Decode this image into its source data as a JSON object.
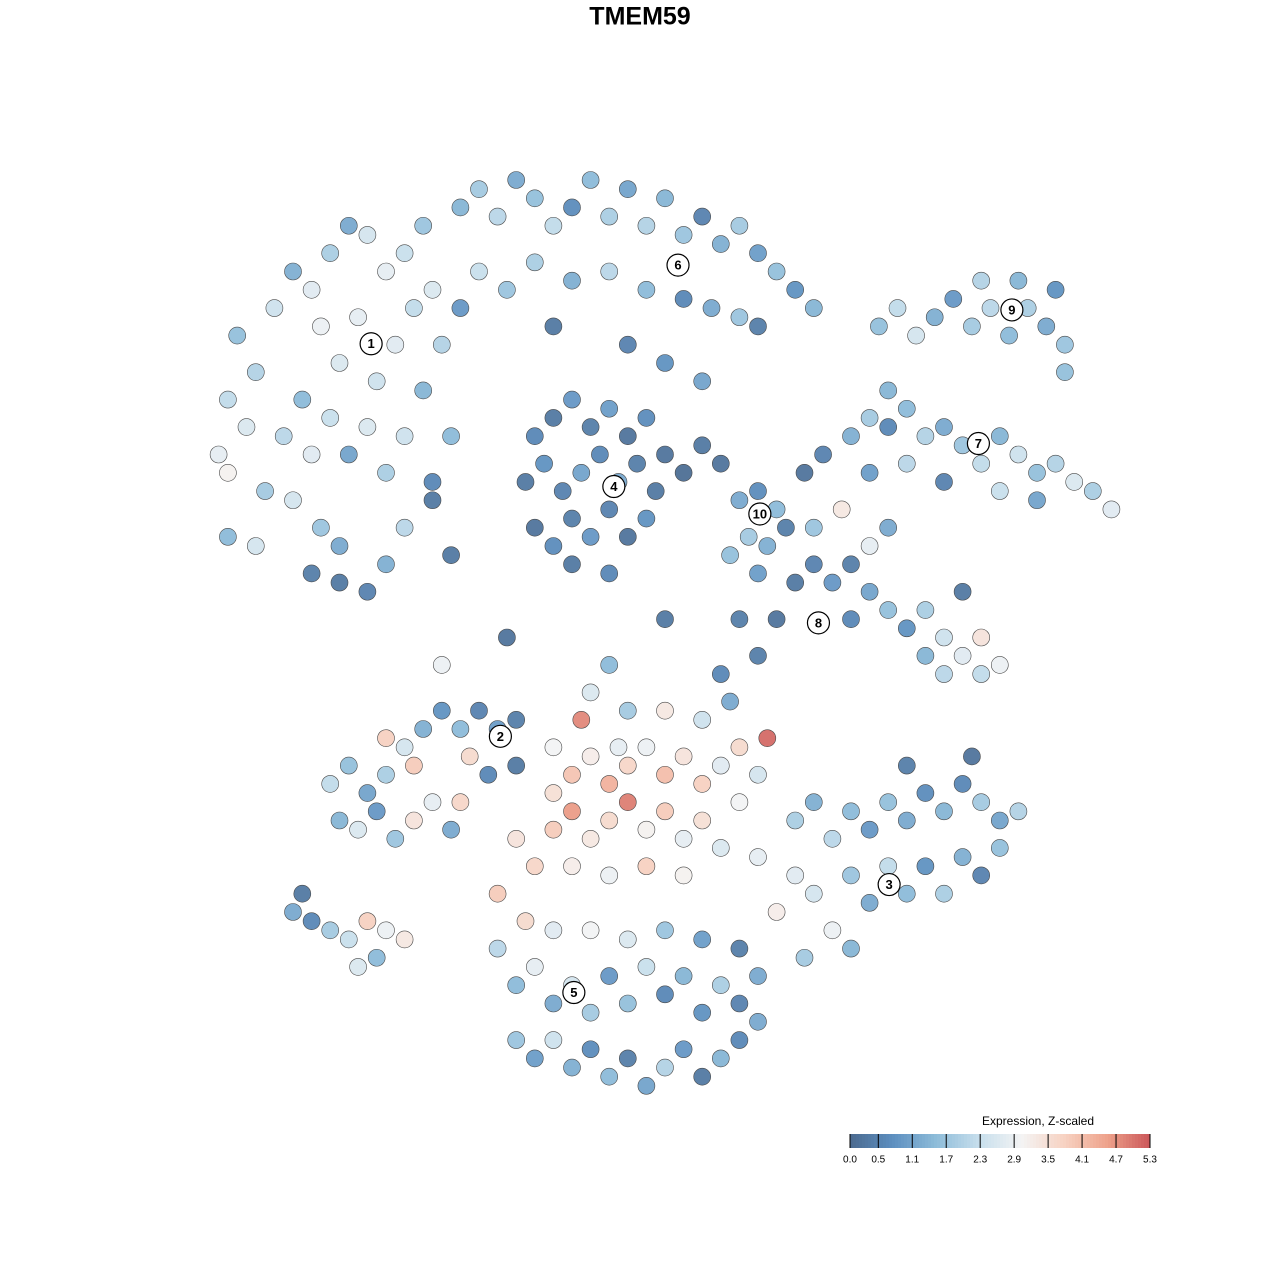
{
  "chart_data": {
    "type": "scatter",
    "title": "TMEM59",
    "xlim": [
      0,
      100
    ],
    "ylim": [
      0,
      100
    ],
    "colorbar": {
      "title": "Expression, Z-scaled",
      "lim": [
        0,
        5.3
      ],
      "colors": [
        "#4b6a8f",
        "#5d8fc0",
        "#8dbcd9",
        "#c6deec",
        "#f4f4f4",
        "#f7d2c2",
        "#eea28b",
        "#cb5659"
      ],
      "ticks": [
        {
          "value": 0,
          "label": "0.0"
        },
        0.5,
        1.1,
        1.7,
        2.3,
        2.9,
        3.5,
        4.1,
        4.7,
        5.3
      ]
    },
    "clusters": [
      {
        "label": "1",
        "x": 18.4,
        "y": 82.1
      },
      {
        "label": "2",
        "x": 32.3,
        "y": 39.2
      },
      {
        "label": "3",
        "x": 74.1,
        "y": 23.0
      },
      {
        "label": "4",
        "x": 44.5,
        "y": 66.5
      },
      {
        "label": "5",
        "x": 40.2,
        "y": 11.2
      },
      {
        "label": "6",
        "x": 51.4,
        "y": 90.7
      },
      {
        "label": "7",
        "x": 83.7,
        "y": 71.2
      },
      {
        "label": "8",
        "x": 66.5,
        "y": 51.6
      },
      {
        "label": "9",
        "x": 87.3,
        "y": 85.8
      },
      {
        "label": "10",
        "x": 60.2,
        "y": 63.5
      }
    ],
    "points": [
      [
        5,
        73,
        2.6
      ],
      [
        3,
        76,
        2.2
      ],
      [
        2,
        70,
        2.8
      ],
      [
        6,
        79,
        2.0
      ],
      [
        4,
        83,
        1.6
      ],
      [
        8,
        86,
        2.4
      ],
      [
        10,
        90,
        1.3
      ],
      [
        12,
        88,
        2.7
      ],
      [
        14,
        92,
        1.9
      ],
      [
        16,
        95,
        1.2
      ],
      [
        18,
        94,
        2.5
      ],
      [
        20,
        90,
        2.8
      ],
      [
        22,
        92,
        2.3
      ],
      [
        24,
        95,
        1.7
      ],
      [
        13,
        84,
        2.9
      ],
      [
        15,
        80,
        2.6
      ],
      [
        17,
        85,
        2.8
      ],
      [
        19,
        78,
        2.4
      ],
      [
        21,
        82,
        2.7
      ],
      [
        23,
        86,
        2.2
      ],
      [
        11,
        76,
        1.5
      ],
      [
        9,
        72,
        2.1
      ],
      [
        7,
        66,
        1.8
      ],
      [
        10,
        65,
        2.5
      ],
      [
        12,
        70,
        2.7
      ],
      [
        14,
        74,
        2.3
      ],
      [
        16,
        70,
        1.1
      ],
      [
        18,
        73,
        2.6
      ],
      [
        20,
        68,
        1.9
      ],
      [
        22,
        72,
        2.4
      ],
      [
        24,
        77,
        1.4
      ],
      [
        26,
        82,
        2.0
      ],
      [
        25,
        88,
        2.6
      ],
      [
        13,
        62,
        1.7
      ],
      [
        15,
        60,
        1.2
      ],
      [
        12,
        57,
        0.4
      ],
      [
        15,
        56,
        0.3
      ],
      [
        18,
        55,
        0.5
      ],
      [
        20,
        58,
        1.3
      ],
      [
        22,
        62,
        2.1
      ],
      [
        6,
        60,
        2.5
      ],
      [
        3,
        68,
        3.1
      ],
      [
        25,
        67,
        0.6
      ],
      [
        27,
        72,
        1.5
      ],
      [
        28,
        97,
        1.4
      ],
      [
        30,
        99,
        1.8
      ],
      [
        32,
        96,
        2.1
      ],
      [
        34,
        100,
        1.2
      ],
      [
        36,
        98,
        1.6
      ],
      [
        38,
        95,
        2.2
      ],
      [
        40,
        97,
        0.7
      ],
      [
        42,
        100,
        1.5
      ],
      [
        44,
        96,
        1.9
      ],
      [
        46,
        99,
        1.1
      ],
      [
        48,
        95,
        2.0
      ],
      [
        50,
        98,
        1.4
      ],
      [
        52,
        94,
        1.7
      ],
      [
        54,
        96,
        0.5
      ],
      [
        56,
        93,
        1.3
      ],
      [
        58,
        95,
        1.8
      ],
      [
        60,
        92,
        1.0
      ],
      [
        62,
        90,
        1.6
      ],
      [
        64,
        88,
        0.8
      ],
      [
        66,
        86,
        1.4
      ],
      [
        30,
        90,
        2.3
      ],
      [
        33,
        88,
        1.7
      ],
      [
        36,
        91,
        1.9
      ],
      [
        40,
        89,
        1.3
      ],
      [
        44,
        90,
        2.1
      ],
      [
        48,
        88,
        1.5
      ],
      [
        52,
        87,
        0.6
      ],
      [
        55,
        86,
        1.2
      ],
      [
        58,
        85,
        1.7
      ],
      [
        60,
        84,
        0.4
      ],
      [
        28,
        86,
        0.9
      ],
      [
        38,
        84,
        0.3
      ],
      [
        46,
        82,
        0.5
      ],
      [
        50,
        80,
        0.8
      ],
      [
        54,
        78,
        1.1
      ],
      [
        36,
        72,
        0.6
      ],
      [
        38,
        74,
        0.3
      ],
      [
        40,
        76,
        0.9
      ],
      [
        42,
        73,
        0.4
      ],
      [
        44,
        75,
        1.0
      ],
      [
        46,
        72,
        0.2
      ],
      [
        48,
        74,
        0.7
      ],
      [
        35,
        67,
        0.3
      ],
      [
        37,
        69,
        0.8
      ],
      [
        39,
        66,
        0.5
      ],
      [
        41,
        68,
        1.1
      ],
      [
        43,
        70,
        0.6
      ],
      [
        45,
        67,
        1.2
      ],
      [
        47,
        69,
        0.4
      ],
      [
        49,
        66,
        0.3
      ],
      [
        36,
        62,
        0.2
      ],
      [
        38,
        60,
        0.7
      ],
      [
        40,
        63,
        0.4
      ],
      [
        42,
        61,
        0.9
      ],
      [
        44,
        64,
        0.5
      ],
      [
        46,
        61,
        0.2
      ],
      [
        48,
        63,
        0.8
      ],
      [
        40,
        58,
        0.3
      ],
      [
        44,
        57,
        0.6
      ],
      [
        50,
        70,
        0.2
      ],
      [
        52,
        68,
        0.1
      ],
      [
        54,
        71,
        0.3
      ],
      [
        56,
        69,
        0.2
      ],
      [
        58,
        65,
        1.2
      ],
      [
        60,
        66,
        0.7
      ],
      [
        62,
        64,
        1.5
      ],
      [
        59,
        61,
        1.8
      ],
      [
        61,
        60,
        1.3
      ],
      [
        63,
        62,
        0.4
      ],
      [
        57,
        59,
        1.6
      ],
      [
        60,
        57,
        1.0
      ],
      [
        65,
        68,
        0.2
      ],
      [
        67,
        70,
        0.5
      ],
      [
        70,
        72,
        1.3
      ],
      [
        72,
        74,
        1.8
      ],
      [
        74,
        73,
        0.6
      ],
      [
        76,
        75,
        1.5
      ],
      [
        78,
        72,
        2.0
      ],
      [
        80,
        73,
        1.2
      ],
      [
        82,
        71,
        1.7
      ],
      [
        84,
        69,
        2.2
      ],
      [
        86,
        72,
        1.4
      ],
      [
        88,
        70,
        2.4
      ],
      [
        90,
        68,
        1.6
      ],
      [
        92,
        69,
        2.0
      ],
      [
        94,
        67,
        2.6
      ],
      [
        96,
        66,
        1.9
      ],
      [
        98,
        64,
        2.7
      ],
      [
        86,
        66,
        2.3
      ],
      [
        90,
        65,
        1.1
      ],
      [
        72,
        68,
        1.0
      ],
      [
        76,
        69,
        2.1
      ],
      [
        80,
        67,
        0.5
      ],
      [
        74,
        77,
        1.4
      ],
      [
        73,
        84,
        1.6
      ],
      [
        75,
        86,
        2.2
      ],
      [
        77,
        83,
        2.5
      ],
      [
        79,
        85,
        1.3
      ],
      [
        81,
        87,
        0.9
      ],
      [
        83,
        84,
        1.8
      ],
      [
        85,
        86,
        2.1
      ],
      [
        87,
        83,
        1.5
      ],
      [
        89,
        86,
        1.9
      ],
      [
        91,
        84,
        1.2
      ],
      [
        93,
        82,
        1.7
      ],
      [
        92,
        88,
        0.8
      ],
      [
        88,
        89,
        1.4
      ],
      [
        84,
        89,
        2.0
      ],
      [
        93,
        79,
        1.6
      ],
      [
        64,
        56,
        0.3
      ],
      [
        66,
        58,
        0.5
      ],
      [
        68,
        56,
        0.9
      ],
      [
        70,
        58,
        0.4
      ],
      [
        72,
        55,
        1.1
      ],
      [
        74,
        53,
        1.6
      ],
      [
        76,
        51,
        0.8
      ],
      [
        78,
        53,
        1.9
      ],
      [
        80,
        50,
        2.4
      ],
      [
        82,
        48,
        2.7
      ],
      [
        84,
        46,
        2.2
      ],
      [
        86,
        47,
        2.9
      ],
      [
        84,
        50,
        3.4
      ],
      [
        80,
        46,
        2.1
      ],
      [
        78,
        48,
        1.4
      ],
      [
        70,
        52,
        0.6
      ],
      [
        66,
        62,
        1.7
      ],
      [
        72,
        60,
        2.8
      ],
      [
        74,
        62,
        1.2
      ],
      [
        69,
        64,
        3.3
      ],
      [
        82,
        55,
        0.3
      ],
      [
        62,
        52,
        0.2
      ],
      [
        60,
        48,
        0.4
      ],
      [
        56,
        46,
        0.6
      ],
      [
        14,
        34,
        2.2
      ],
      [
        16,
        36,
        1.6
      ],
      [
        18,
        33,
        1.1
      ],
      [
        20,
        35,
        1.9
      ],
      [
        22,
        38,
        2.5
      ],
      [
        24,
        40,
        1.3
      ],
      [
        26,
        42,
        0.8
      ],
      [
        28,
        40,
        1.5
      ],
      [
        30,
        42,
        0.5
      ],
      [
        32,
        40,
        1.0
      ],
      [
        34,
        41,
        0.4
      ],
      [
        15,
        30,
        1.4
      ],
      [
        17,
        29,
        2.6
      ],
      [
        19,
        31,
        0.9
      ],
      [
        21,
        28,
        1.7
      ],
      [
        23,
        30,
        3.4
      ],
      [
        25,
        32,
        2.8
      ],
      [
        27,
        29,
        1.2
      ],
      [
        29,
        37,
        3.6
      ],
      [
        20,
        39,
        3.8
      ],
      [
        23,
        36,
        3.9
      ],
      [
        31,
        35,
        0.6
      ],
      [
        34,
        36,
        0.3
      ],
      [
        28,
        32,
        3.7
      ],
      [
        38,
        33,
        3.5
      ],
      [
        40,
        35,
        4.0
      ],
      [
        42,
        37,
        3.2
      ],
      [
        44,
        34,
        4.3
      ],
      [
        46,
        36,
        3.7
      ],
      [
        48,
        38,
        2.9
      ],
      [
        50,
        35,
        4.1
      ],
      [
        52,
        37,
        3.4
      ],
      [
        54,
        34,
        3.8
      ],
      [
        56,
        36,
        2.7
      ],
      [
        58,
        38,
        3.6
      ],
      [
        60,
        35,
        2.5
      ],
      [
        38,
        29,
        3.9
      ],
      [
        40,
        31,
        4.6
      ],
      [
        42,
        28,
        3.3
      ],
      [
        44,
        30,
        3.6
      ],
      [
        46,
        32,
        4.9
      ],
      [
        48,
        29,
        3.1
      ],
      [
        50,
        31,
        3.9
      ],
      [
        52,
        28,
        2.8
      ],
      [
        54,
        30,
        3.5
      ],
      [
        56,
        27,
        2.6
      ],
      [
        58,
        32,
        3.0
      ],
      [
        36,
        25,
        3.7
      ],
      [
        40,
        25,
        3.2
      ],
      [
        44,
        24,
        2.9
      ],
      [
        48,
        25,
        3.8
      ],
      [
        52,
        24,
        3.1
      ],
      [
        41,
        41,
        4.8
      ],
      [
        61,
        39,
        5.1
      ],
      [
        45,
        38,
        2.8
      ],
      [
        42,
        44,
        2.6
      ],
      [
        46,
        42,
        1.8
      ],
      [
        50,
        42,
        3.3
      ],
      [
        54,
        41,
        2.4
      ],
      [
        57,
        43,
        1.2
      ],
      [
        38,
        38,
        3.0
      ],
      [
        34,
        28,
        3.4
      ],
      [
        32,
        22,
        3.9
      ],
      [
        35,
        19,
        3.6
      ],
      [
        64,
        30,
        1.9
      ],
      [
        66,
        32,
        1.3
      ],
      [
        68,
        28,
        2.1
      ],
      [
        70,
        31,
        1.5
      ],
      [
        72,
        29,
        0.9
      ],
      [
        74,
        32,
        1.6
      ],
      [
        76,
        30,
        1.2
      ],
      [
        78,
        33,
        0.7
      ],
      [
        80,
        31,
        1.4
      ],
      [
        82,
        34,
        0.6
      ],
      [
        84,
        32,
        1.8
      ],
      [
        86,
        30,
        1.1
      ],
      [
        88,
        31,
        2.0
      ],
      [
        70,
        24,
        1.7
      ],
      [
        72,
        21,
        1.2
      ],
      [
        74,
        25,
        2.2
      ],
      [
        76,
        22,
        1.5
      ],
      [
        78,
        25,
        0.8
      ],
      [
        80,
        22,
        1.9
      ],
      [
        82,
        26,
        1.3
      ],
      [
        84,
        24,
        0.5
      ],
      [
        86,
        27,
        1.6
      ],
      [
        66,
        22,
        2.5
      ],
      [
        68,
        18,
        2.9
      ],
      [
        70,
        16,
        1.4
      ],
      [
        64,
        24,
        2.7
      ],
      [
        62,
        20,
        3.2
      ],
      [
        65,
        15,
        1.8
      ],
      [
        60,
        26,
        2.8
      ],
      [
        76,
        36,
        0.4
      ],
      [
        83,
        37,
        0.2
      ],
      [
        32,
        16,
        2.1
      ],
      [
        34,
        12,
        1.5
      ],
      [
        36,
        14,
        2.8
      ],
      [
        38,
        10,
        1.2
      ],
      [
        40,
        12,
        2.5
      ],
      [
        42,
        9,
        1.8
      ],
      [
        44,
        13,
        0.9
      ],
      [
        46,
        10,
        1.6
      ],
      [
        48,
        14,
        2.3
      ],
      [
        50,
        11,
        0.6
      ],
      [
        52,
        13,
        1.4
      ],
      [
        54,
        9,
        0.8
      ],
      [
        56,
        12,
        1.9
      ],
      [
        58,
        10,
        0.5
      ],
      [
        60,
        13,
        1.2
      ],
      [
        34,
        6,
        1.7
      ],
      [
        36,
        4,
        1.0
      ],
      [
        38,
        6,
        2.4
      ],
      [
        40,
        3,
        1.3
      ],
      [
        42,
        5,
        0.7
      ],
      [
        44,
        2,
        1.5
      ],
      [
        46,
        4,
        0.4
      ],
      [
        48,
        1,
        1.1
      ],
      [
        50,
        3,
        2.0
      ],
      [
        52,
        5,
        0.9
      ],
      [
        54,
        2,
        0.3
      ],
      [
        56,
        4,
        1.4
      ],
      [
        58,
        6,
        0.6
      ],
      [
        60,
        8,
        1.2
      ],
      [
        38,
        18,
        2.7
      ],
      [
        42,
        18,
        3.0
      ],
      [
        46,
        17,
        2.6
      ],
      [
        50,
        18,
        1.7
      ],
      [
        54,
        17,
        1.0
      ],
      [
        58,
        16,
        0.4
      ],
      [
        10,
        20,
        1.2
      ],
      [
        12,
        19,
        0.6
      ],
      [
        14,
        18,
        1.8
      ],
      [
        16,
        17,
        2.3
      ],
      [
        18,
        19,
        3.8
      ],
      [
        20,
        18,
        2.9
      ],
      [
        22,
        17,
        3.3
      ],
      [
        17,
        14,
        2.6
      ],
      [
        19,
        15,
        1.5
      ],
      [
        11,
        22,
        0.3
      ],
      [
        25,
        65,
        0.3
      ],
      [
        27,
        59,
        0.3
      ],
      [
        26,
        47,
        2.9
      ],
      [
        33,
        50,
        0.2
      ],
      [
        44,
        47,
        1.5
      ],
      [
        50,
        52,
        0.3
      ],
      [
        58,
        52,
        0.4
      ],
      [
        3,
        61,
        1.5
      ]
    ]
  }
}
